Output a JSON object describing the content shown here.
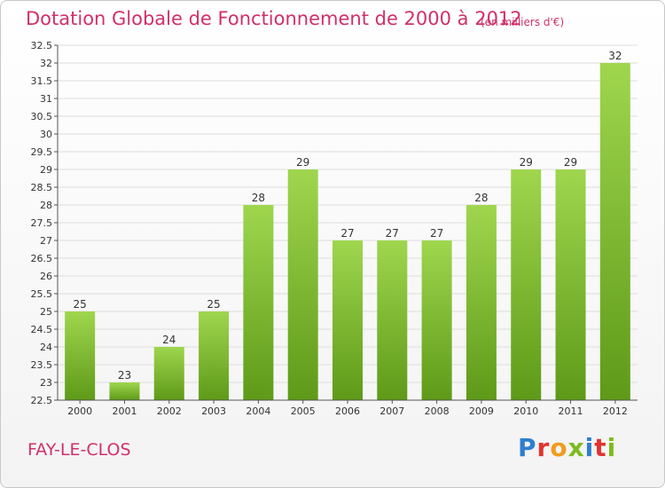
{
  "header": {
    "title": "Dotation Globale de Fonctionnement de 2000 à 2012",
    "subtitle": "(en milliers d'€)"
  },
  "footer": {
    "place": "FAY-LE-CLOS",
    "logo": "Proxiti"
  },
  "colors": {
    "title": "#d0306a",
    "bar_top": "#9fd64e",
    "bar_bottom": "#5e9a18",
    "grid": "#dddddd"
  },
  "chart_data": {
    "type": "bar",
    "title": "Dotation Globale de Fonctionnement de 2000 à 2012",
    "subtitle": "(en milliers d'€)",
    "categories": [
      "2000",
      "2001",
      "2002",
      "2003",
      "2004",
      "2005",
      "2006",
      "2007",
      "2008",
      "2009",
      "2010",
      "2011",
      "2012"
    ],
    "values": [
      25,
      23,
      24,
      25,
      28,
      29,
      27,
      27,
      27,
      28,
      29,
      29,
      32
    ],
    "data_labels": [
      "25",
      "23",
      "24",
      "25",
      "28",
      "29",
      "27",
      "27",
      "27",
      "28",
      "29",
      "29",
      "32"
    ],
    "ylim": [
      22.5,
      32.5
    ],
    "yticks": [
      "22.5",
      "23",
      "23.5",
      "24",
      "24.5",
      "25",
      "25.5",
      "26",
      "26.5",
      "27",
      "27.5",
      "28",
      "28.5",
      "29",
      "29.5",
      "30",
      "30.5",
      "31",
      "31.5",
      "32",
      "32.5"
    ],
    "grid": true,
    "legend": "none"
  }
}
